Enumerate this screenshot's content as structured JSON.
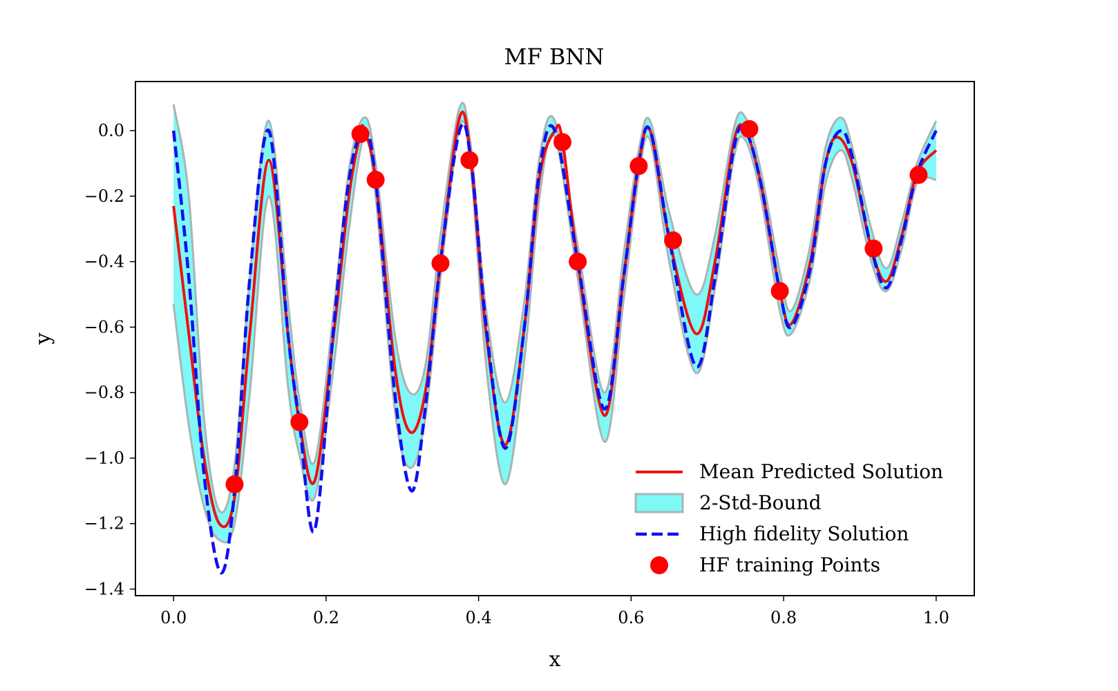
{
  "chart_data": {
    "type": "line",
    "title": "MF BNN",
    "xlabel": "x",
    "ylabel": "y",
    "xlim": [
      -0.05,
      1.05
    ],
    "ylim": [
      -1.42,
      0.15
    ],
    "xticks": [
      0.0,
      0.2,
      0.4,
      0.6,
      0.8,
      1.0
    ],
    "xtick_labels": [
      "0.0",
      "0.2",
      "0.4",
      "0.6",
      "0.8",
      "1.0"
    ],
    "yticks": [
      0.0,
      -0.2,
      -0.4,
      -0.6,
      -0.8,
      -1.0,
      -1.2,
      -1.4
    ],
    "ytick_labels": [
      "0.0",
      "−0.2",
      "−0.4",
      "−0.6",
      "−0.8",
      "−1.0",
      "−1.2",
      "−1.4"
    ],
    "legend_position": "lower-right",
    "grid": false,
    "colors": {
      "mean": "#ee1111",
      "band_fill": "#7ff8f8",
      "band_edge": "#aab4b4",
      "hf": "#1010ee",
      "points": "#ff0000"
    },
    "series": [
      {
        "name": "Mean Predicted Solution",
        "kind": "line",
        "x": [
          0.0,
          0.02,
          0.04,
          0.06,
          0.08,
          0.1,
          0.125,
          0.15,
          0.165,
          0.185,
          0.21,
          0.23,
          0.245,
          0.25,
          0.265,
          0.29,
          0.31,
          0.33,
          0.35,
          0.375,
          0.39,
          0.41,
          0.435,
          0.46,
          0.48,
          0.5,
          0.51,
          0.53,
          0.565,
          0.59,
          0.61,
          0.625,
          0.65,
          0.685,
          0.71,
          0.735,
          0.75,
          0.77,
          0.795,
          0.81,
          0.835,
          0.855,
          0.87,
          0.89,
          0.915,
          0.935,
          0.955,
          0.975,
          1.0
        ],
        "y": [
          -0.23,
          -0.62,
          -1.0,
          -1.2,
          -1.12,
          -0.62,
          -0.09,
          -0.62,
          -0.89,
          -1.07,
          -0.62,
          -0.2,
          -0.01,
          0.0,
          -0.15,
          -0.72,
          -0.92,
          -0.8,
          -0.4,
          0.04,
          -0.09,
          -0.62,
          -0.96,
          -0.6,
          -0.14,
          0.0,
          -0.03,
          -0.4,
          -0.87,
          -0.45,
          -0.1,
          0.0,
          -0.33,
          -0.62,
          -0.4,
          -0.03,
          0.0,
          -0.16,
          -0.49,
          -0.59,
          -0.4,
          -0.1,
          -0.02,
          -0.1,
          -0.36,
          -0.46,
          -0.32,
          -0.13,
          -0.06
        ]
      },
      {
        "name": "2-Std-Bound",
        "kind": "band",
        "x": [
          0.0,
          0.02,
          0.04,
          0.06,
          0.08,
          0.1,
          0.125,
          0.15,
          0.165,
          0.185,
          0.21,
          0.23,
          0.25,
          0.265,
          0.29,
          0.31,
          0.33,
          0.35,
          0.375,
          0.39,
          0.41,
          0.435,
          0.46,
          0.48,
          0.5,
          0.53,
          0.565,
          0.59,
          0.61,
          0.625,
          0.65,
          0.685,
          0.71,
          0.735,
          0.75,
          0.77,
          0.795,
          0.81,
          0.835,
          0.855,
          0.875,
          0.89,
          0.915,
          0.935,
          0.955,
          0.975,
          1.0
        ],
        "upper": [
          0.08,
          -0.2,
          -0.88,
          -1.16,
          -1.02,
          -0.45,
          0.03,
          -0.52,
          -0.82,
          -1.01,
          -0.55,
          -0.12,
          0.04,
          -0.1,
          -0.62,
          -0.8,
          -0.72,
          -0.32,
          0.07,
          -0.05,
          -0.55,
          -0.83,
          -0.52,
          -0.08,
          0.03,
          -0.35,
          -0.8,
          -0.38,
          -0.06,
          0.03,
          -0.25,
          -0.5,
          -0.32,
          0.01,
          0.04,
          -0.12,
          -0.43,
          -0.55,
          -0.35,
          -0.05,
          0.04,
          -0.05,
          -0.3,
          -0.42,
          -0.28,
          -0.1,
          0.03
        ],
        "lower": [
          -0.53,
          -0.9,
          -1.15,
          -1.25,
          -1.2,
          -0.8,
          -0.2,
          -0.78,
          -0.99,
          -1.12,
          -0.72,
          -0.3,
          -0.02,
          -0.2,
          -0.85,
          -1.03,
          -0.88,
          -0.45,
          0.01,
          -0.12,
          -0.72,
          -1.08,
          -0.7,
          -0.2,
          -0.02,
          -0.45,
          -0.95,
          -0.52,
          -0.14,
          -0.03,
          -0.4,
          -0.74,
          -0.48,
          -0.08,
          -0.03,
          -0.2,
          -0.55,
          -0.62,
          -0.45,
          -0.16,
          -0.06,
          -0.15,
          -0.4,
          -0.49,
          -0.36,
          -0.16,
          -0.15
        ]
      },
      {
        "name": "High fidelity Solution",
        "kind": "dashed-line",
        "x": [
          0.0,
          0.02,
          0.04,
          0.062,
          0.08,
          0.1,
          0.125,
          0.15,
          0.165,
          0.185,
          0.21,
          0.23,
          0.25,
          0.265,
          0.29,
          0.312,
          0.33,
          0.35,
          0.375,
          0.39,
          0.41,
          0.435,
          0.46,
          0.48,
          0.5,
          0.53,
          0.565,
          0.59,
          0.61,
          0.625,
          0.65,
          0.685,
          0.71,
          0.735,
          0.75,
          0.77,
          0.795,
          0.81,
          0.835,
          0.855,
          0.875,
          0.89,
          0.915,
          0.935,
          0.955,
          0.975,
          1.0
        ],
        "y": [
          0.0,
          -0.45,
          -1.05,
          -1.35,
          -1.1,
          -0.45,
          0.0,
          -0.62,
          -0.89,
          -1.22,
          -0.6,
          -0.15,
          0.0,
          -0.15,
          -0.8,
          -1.1,
          -0.85,
          -0.4,
          0.0,
          -0.09,
          -0.6,
          -0.97,
          -0.6,
          -0.12,
          0.0,
          -0.4,
          -0.85,
          -0.45,
          -0.1,
          0.0,
          -0.33,
          -0.72,
          -0.45,
          -0.05,
          0.0,
          -0.16,
          -0.49,
          -0.6,
          -0.42,
          -0.1,
          0.0,
          -0.08,
          -0.36,
          -0.48,
          -0.33,
          -0.13,
          0.0
        ]
      },
      {
        "name": "HF training Points",
        "kind": "scatter",
        "x": [
          0.08,
          0.165,
          0.245,
          0.265,
          0.35,
          0.388,
          0.51,
          0.53,
          0.61,
          0.655,
          0.755,
          0.795,
          0.918,
          0.977
        ],
        "y": [
          -1.08,
          -0.89,
          -0.01,
          -0.15,
          -0.405,
          -0.09,
          -0.035,
          -0.4,
          -0.108,
          -0.335,
          0.005,
          -0.49,
          -0.36,
          -0.135
        ]
      }
    ]
  }
}
